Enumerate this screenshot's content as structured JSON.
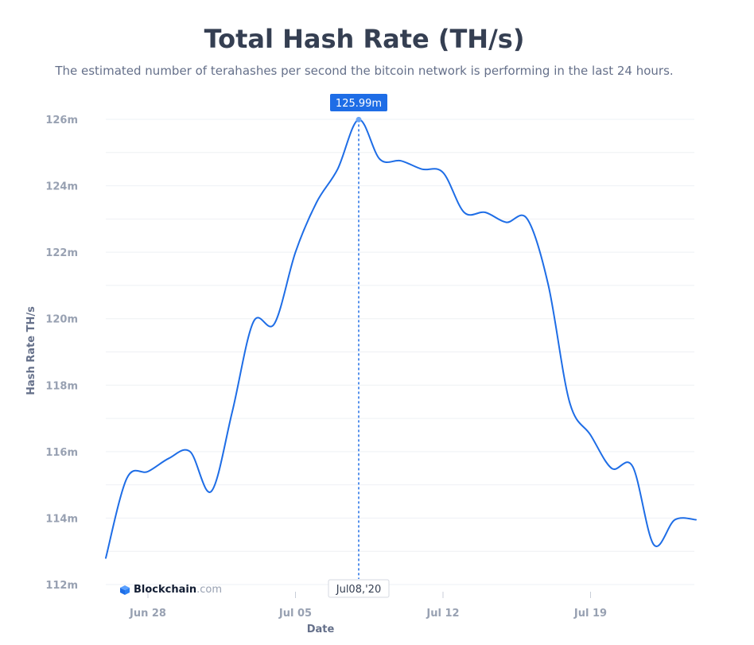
{
  "page": {
    "title": "Total Hash Rate (TH/s)",
    "subtitle": "The estimated number of terahashes per second the bitcoin network is performing in the last 24 hours."
  },
  "brand": {
    "name": "Blockchain",
    "suffix": ".com"
  },
  "tooltip": {
    "value_label": "125.99m",
    "date_label": "Jul08,'20"
  },
  "colors": {
    "line": "#1e6de6",
    "tooltip_bg": "#1e6de6",
    "grid": "#eef0f4",
    "title": "#353f52",
    "axis_text": "#98a1b2"
  },
  "chart_data": {
    "type": "line",
    "title": "Total Hash Rate (TH/s)",
    "xlabel": "Date",
    "ylabel": "Hash Rate TH/s",
    "ylim": [
      112,
      126
    ],
    "y_unit_suffix": "m",
    "yticks": [
      112,
      114,
      116,
      118,
      120,
      122,
      124,
      126
    ],
    "ytick_labels": [
      "112m",
      "114m",
      "116m",
      "118m",
      "120m",
      "122m",
      "124m",
      "126m"
    ],
    "xticks": [
      "2020-06-28",
      "2020-07-05",
      "2020-07-12",
      "2020-07-19"
    ],
    "xtick_labels": [
      "Jun 28",
      "Jul 05",
      "Jul 12",
      "Jul 19"
    ],
    "xlim": [
      "2020-06-26",
      "2020-07-22"
    ],
    "grid": true,
    "series": [
      {
        "points": [
          [
            "2020-06-26",
            112.8
          ],
          [
            "2020-06-27",
            115.2
          ],
          [
            "2020-06-28",
            115.4
          ],
          [
            "2020-06-29",
            115.8
          ],
          [
            "2020-06-30",
            116.0
          ],
          [
            "2020-07-01",
            114.8
          ],
          [
            "2020-07-02",
            117.2
          ],
          [
            "2020-07-03",
            119.9
          ],
          [
            "2020-07-04",
            119.85
          ],
          [
            "2020-07-05",
            122.0
          ],
          [
            "2020-07-06",
            123.5
          ],
          [
            "2020-07-07",
            124.5
          ],
          [
            "2020-07-08",
            125.99
          ],
          [
            "2020-07-09",
            124.8
          ],
          [
            "2020-07-10",
            124.75
          ],
          [
            "2020-07-11",
            124.5
          ],
          [
            "2020-07-12",
            124.4
          ],
          [
            "2020-07-13",
            123.2
          ],
          [
            "2020-07-14",
            123.2
          ],
          [
            "2020-07-15",
            122.9
          ],
          [
            "2020-07-16",
            123.0
          ],
          [
            "2020-07-17",
            121.0
          ],
          [
            "2020-07-18",
            117.5
          ],
          [
            "2020-07-19",
            116.5
          ],
          [
            "2020-07-20",
            115.5
          ],
          [
            "2020-07-21",
            115.55
          ],
          [
            "2020-07-22",
            113.2
          ],
          [
            "2020-07-23",
            113.95
          ],
          [
            "2020-07-24",
            113.95
          ]
        ]
      }
    ],
    "highlight": {
      "x": "2020-07-08",
      "y": 125.99
    }
  }
}
